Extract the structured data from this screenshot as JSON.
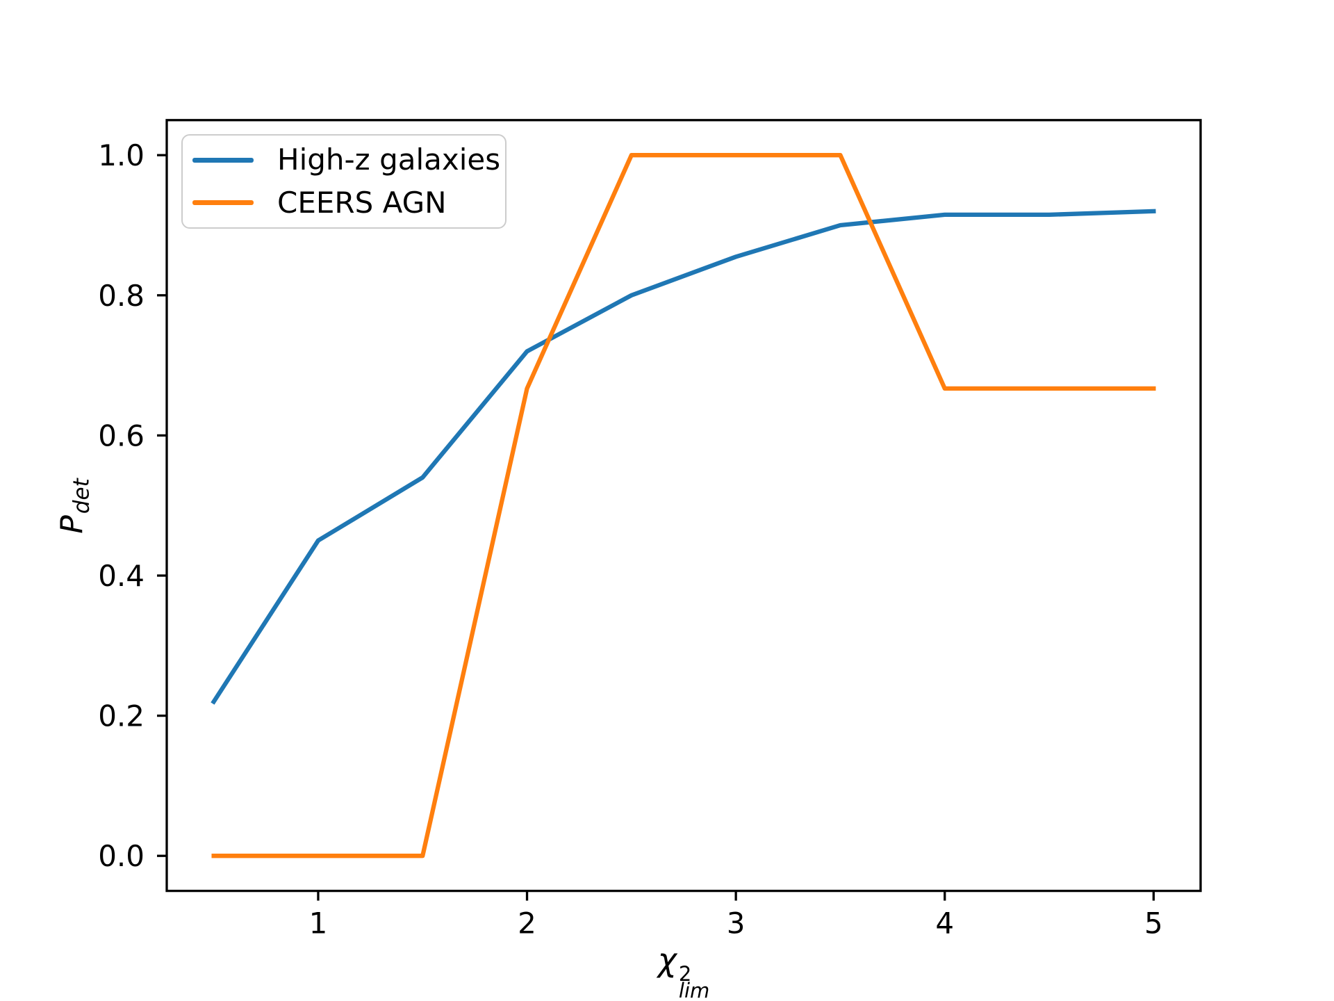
{
  "chart_data": {
    "type": "line",
    "title": "",
    "x": [
      0.5,
      1.0,
      1.5,
      2.0,
      2.5,
      3.0,
      3.5,
      4.0,
      4.5,
      5.0
    ],
    "series": [
      {
        "name": "High-z galaxies",
        "color": "#1f77b4",
        "values": [
          0.22,
          0.45,
          0.54,
          0.72,
          0.8,
          0.855,
          0.9,
          0.915,
          0.915,
          0.92
        ]
      },
      {
        "name": "CEERS AGN",
        "color": "#ff7f0e",
        "values": [
          0.0,
          0.0,
          0.0,
          0.667,
          1.0,
          1.0,
          1.0,
          0.667,
          0.667,
          0.667
        ]
      }
    ],
    "xlabel": {
      "base": "χ",
      "sup": "2",
      "sub": "lim"
    },
    "ylabel": {
      "base": "P",
      "sub": "det"
    },
    "xlim": [
      0.275,
      5.225
    ],
    "ylim": [
      -0.05,
      1.05
    ],
    "xticks": {
      "values": [
        1,
        2,
        3,
        4,
        5
      ],
      "labels": [
        "1",
        "2",
        "3",
        "4",
        "5"
      ]
    },
    "yticks": {
      "values": [
        0.0,
        0.2,
        0.4,
        0.6,
        0.8,
        1.0
      ],
      "labels": [
        "0.0",
        "0.2",
        "0.4",
        "0.6",
        "0.8",
        "1.0"
      ]
    },
    "grid": false,
    "legend": {
      "position": "upper left"
    },
    "axis_color": "#000000",
    "background": "#ffffff"
  }
}
